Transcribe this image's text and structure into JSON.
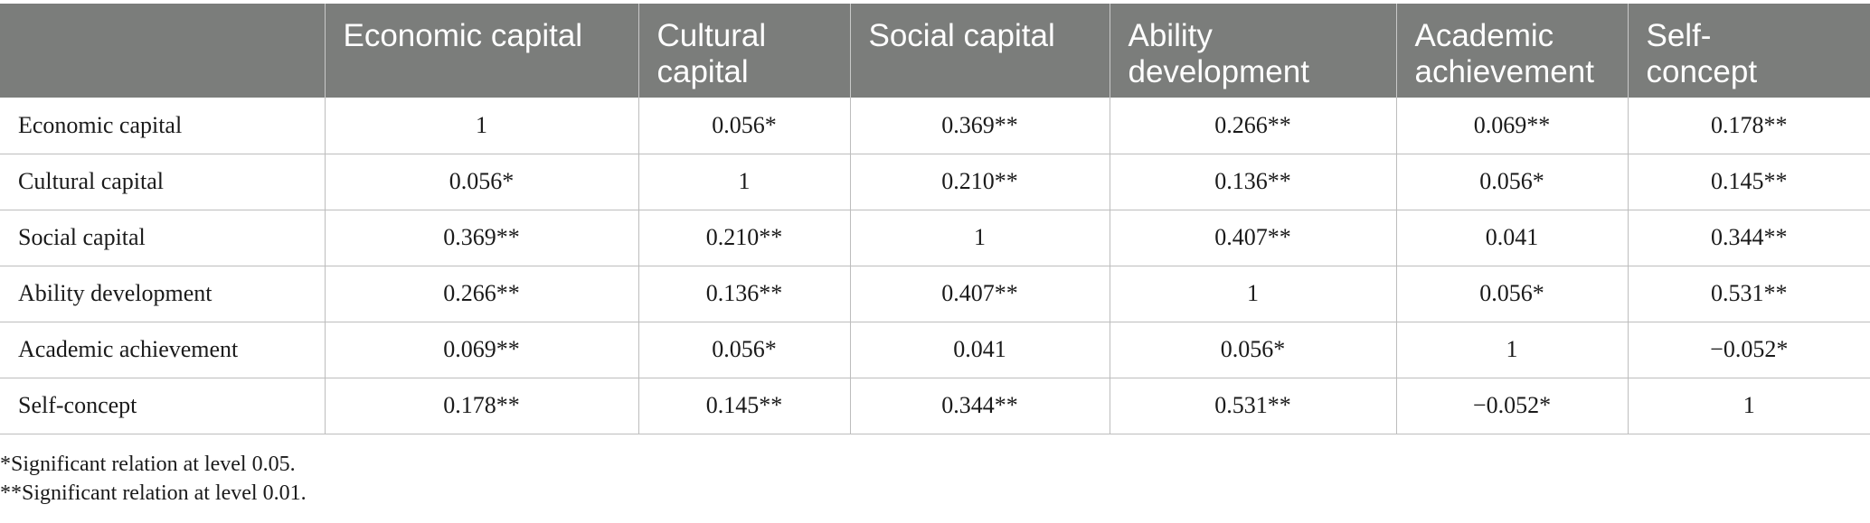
{
  "table": {
    "headers": [
      "",
      "Economic capital",
      "Cultural\ncapital",
      "Social capital",
      "Ability\ndevelopment",
      "Academic\nachievement",
      "Self-\nconcept"
    ],
    "rows": [
      [
        "Economic capital",
        "1",
        "0.056*",
        "0.369**",
        "0.266**",
        "0.069**",
        "0.178**"
      ],
      [
        "Cultural capital",
        "0.056*",
        "1",
        "0.210**",
        "0.136**",
        "0.056*",
        "0.145**"
      ],
      [
        "Social capital",
        "0.369**",
        "0.210**",
        "1",
        "0.407**",
        "0.041",
        "0.344**"
      ],
      [
        "Ability development",
        "0.266**",
        "0.136**",
        "0.407**",
        "1",
        "0.056*",
        "0.531**"
      ],
      [
        "Academic achievement",
        "0.069**",
        "0.056*",
        "0.041",
        "0.056*",
        "1",
        "−0.052*"
      ],
      [
        "Self-concept",
        "0.178**",
        "0.145**",
        "0.344**",
        "0.531**",
        "−0.052*",
        "1"
      ]
    ]
  },
  "notes": [
    "*Significant relation at level 0.05.",
    "**Significant relation at level 0.01."
  ],
  "colors": {
    "header_background": "#7b7d7b",
    "header_text": "#ffffff",
    "grid_lines": "#bdbdbd"
  }
}
